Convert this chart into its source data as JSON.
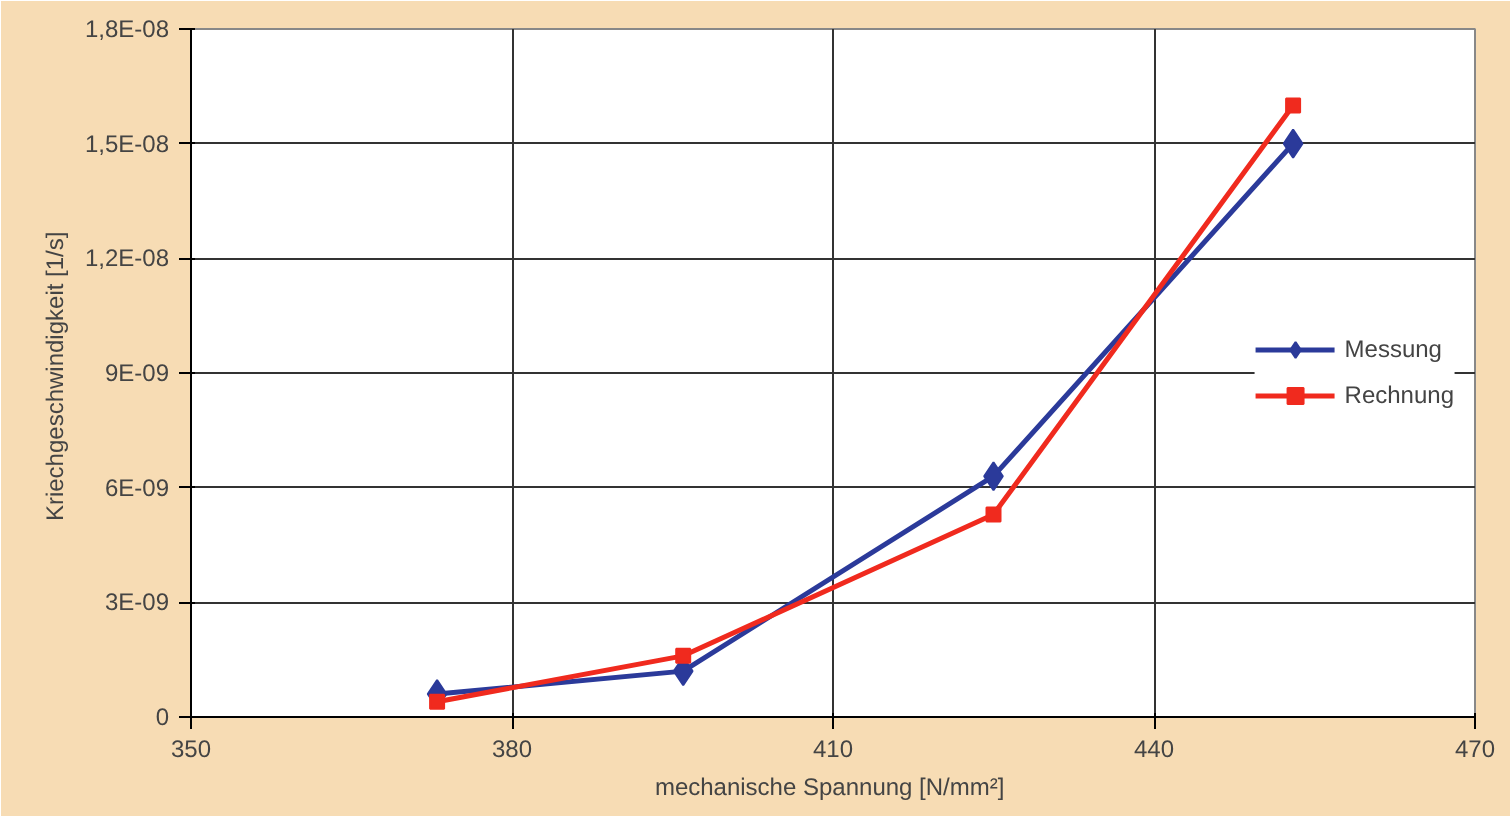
{
  "chart_data": {
    "type": "line",
    "xlabel": "mechanische Spannung  [N/mm²]",
    "ylabel": "Kriechgeschwindigkeit  [1/s]",
    "xlim": [
      350,
      470
    ],
    "xticks": [
      350,
      380,
      410,
      440,
      470
    ],
    "ylim": [
      0,
      1.8e-08
    ],
    "yticks": [
      0,
      {
        "value": 3e-09,
        "label": "3E-09"
      },
      {
        "value": 6e-09,
        "label": "6E-09"
      },
      {
        "value": 9e-09,
        "label": "9E-09"
      },
      {
        "value": 1.2e-08,
        "label": "1,2E-08"
      },
      {
        "value": 1.5e-08,
        "label": "1,5E-08"
      },
      {
        "value": 1.8e-08,
        "label": "1,8E-08"
      }
    ],
    "grid": true,
    "legend": "right",
    "series": [
      {
        "name": "Messung",
        "color": "#2b3a9a",
        "marker": "diamond",
        "x": [
          373,
          396,
          425,
          453
        ],
        "values": [
          6e-10,
          1.2e-09,
          6.3e-09,
          1.5e-08
        ]
      },
      {
        "name": "Rechnung",
        "color": "#f02a1e",
        "marker": "square",
        "x": [
          373,
          396,
          425,
          453
        ],
        "values": [
          4e-10,
          1.6e-09,
          5.3e-09,
          1.6e-08
        ]
      }
    ]
  }
}
